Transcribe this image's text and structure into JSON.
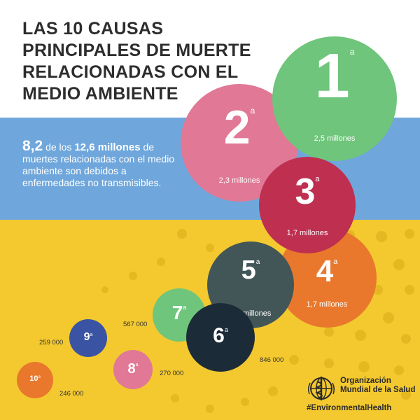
{
  "title_lines": [
    "LAS 10 CAUSAS",
    "PRINCIPALES DE MUERTE",
    "RELACIONADAS CON EL",
    "MEDIO AMBIENTE"
  ],
  "stat": {
    "num": "8,2",
    "pre": " de los ",
    "strong": "12,6 millones",
    "post": " de muertes relacionadas con el medio ambiente son debidos a enfermedades no transmisibles."
  },
  "causes": [
    {
      "rank": "1",
      "sup": "a",
      "value": "2,5 millones",
      "color": "#6fc57b"
    },
    {
      "rank": "2",
      "sup": "a",
      "value": "2,3 millones",
      "color": "#e07896"
    },
    {
      "rank": "3",
      "sup": "a",
      "value": "1,7 millones",
      "color": "#be2f50"
    },
    {
      "rank": "4",
      "sup": "a",
      "value": "1,7 millones",
      "color": "#e9782c"
    },
    {
      "rank": "5",
      "sup": "a",
      "value": "1.4 millones",
      "color": "#435657"
    },
    {
      "rank": "6",
      "sup": "a",
      "value": "846 000",
      "color": "#1c2b38"
    },
    {
      "rank": "7",
      "sup": "a",
      "value": "567 000",
      "color": "#6fc57b"
    },
    {
      "rank": "8",
      "sup": "a",
      "value": "270 000",
      "color": "#e07896"
    },
    {
      "rank": "9",
      "sup": "a",
      "value": "259 000",
      "color": "#3a53a2"
    },
    {
      "rank": "10",
      "sup": "a",
      "value": "246 000",
      "color": "#e9782c"
    }
  ],
  "org": {
    "line1": "Organización",
    "line2": "Mundial de la Salud",
    "logo_icon": "who-emblem-icon"
  },
  "hashtag": "#EnvironmentalHealth",
  "colors": {
    "white_band": "#ffffff",
    "blue_band": "#6fa7dc",
    "yellow_band": "#f3c92f",
    "title_text": "#2d2d2d"
  }
}
